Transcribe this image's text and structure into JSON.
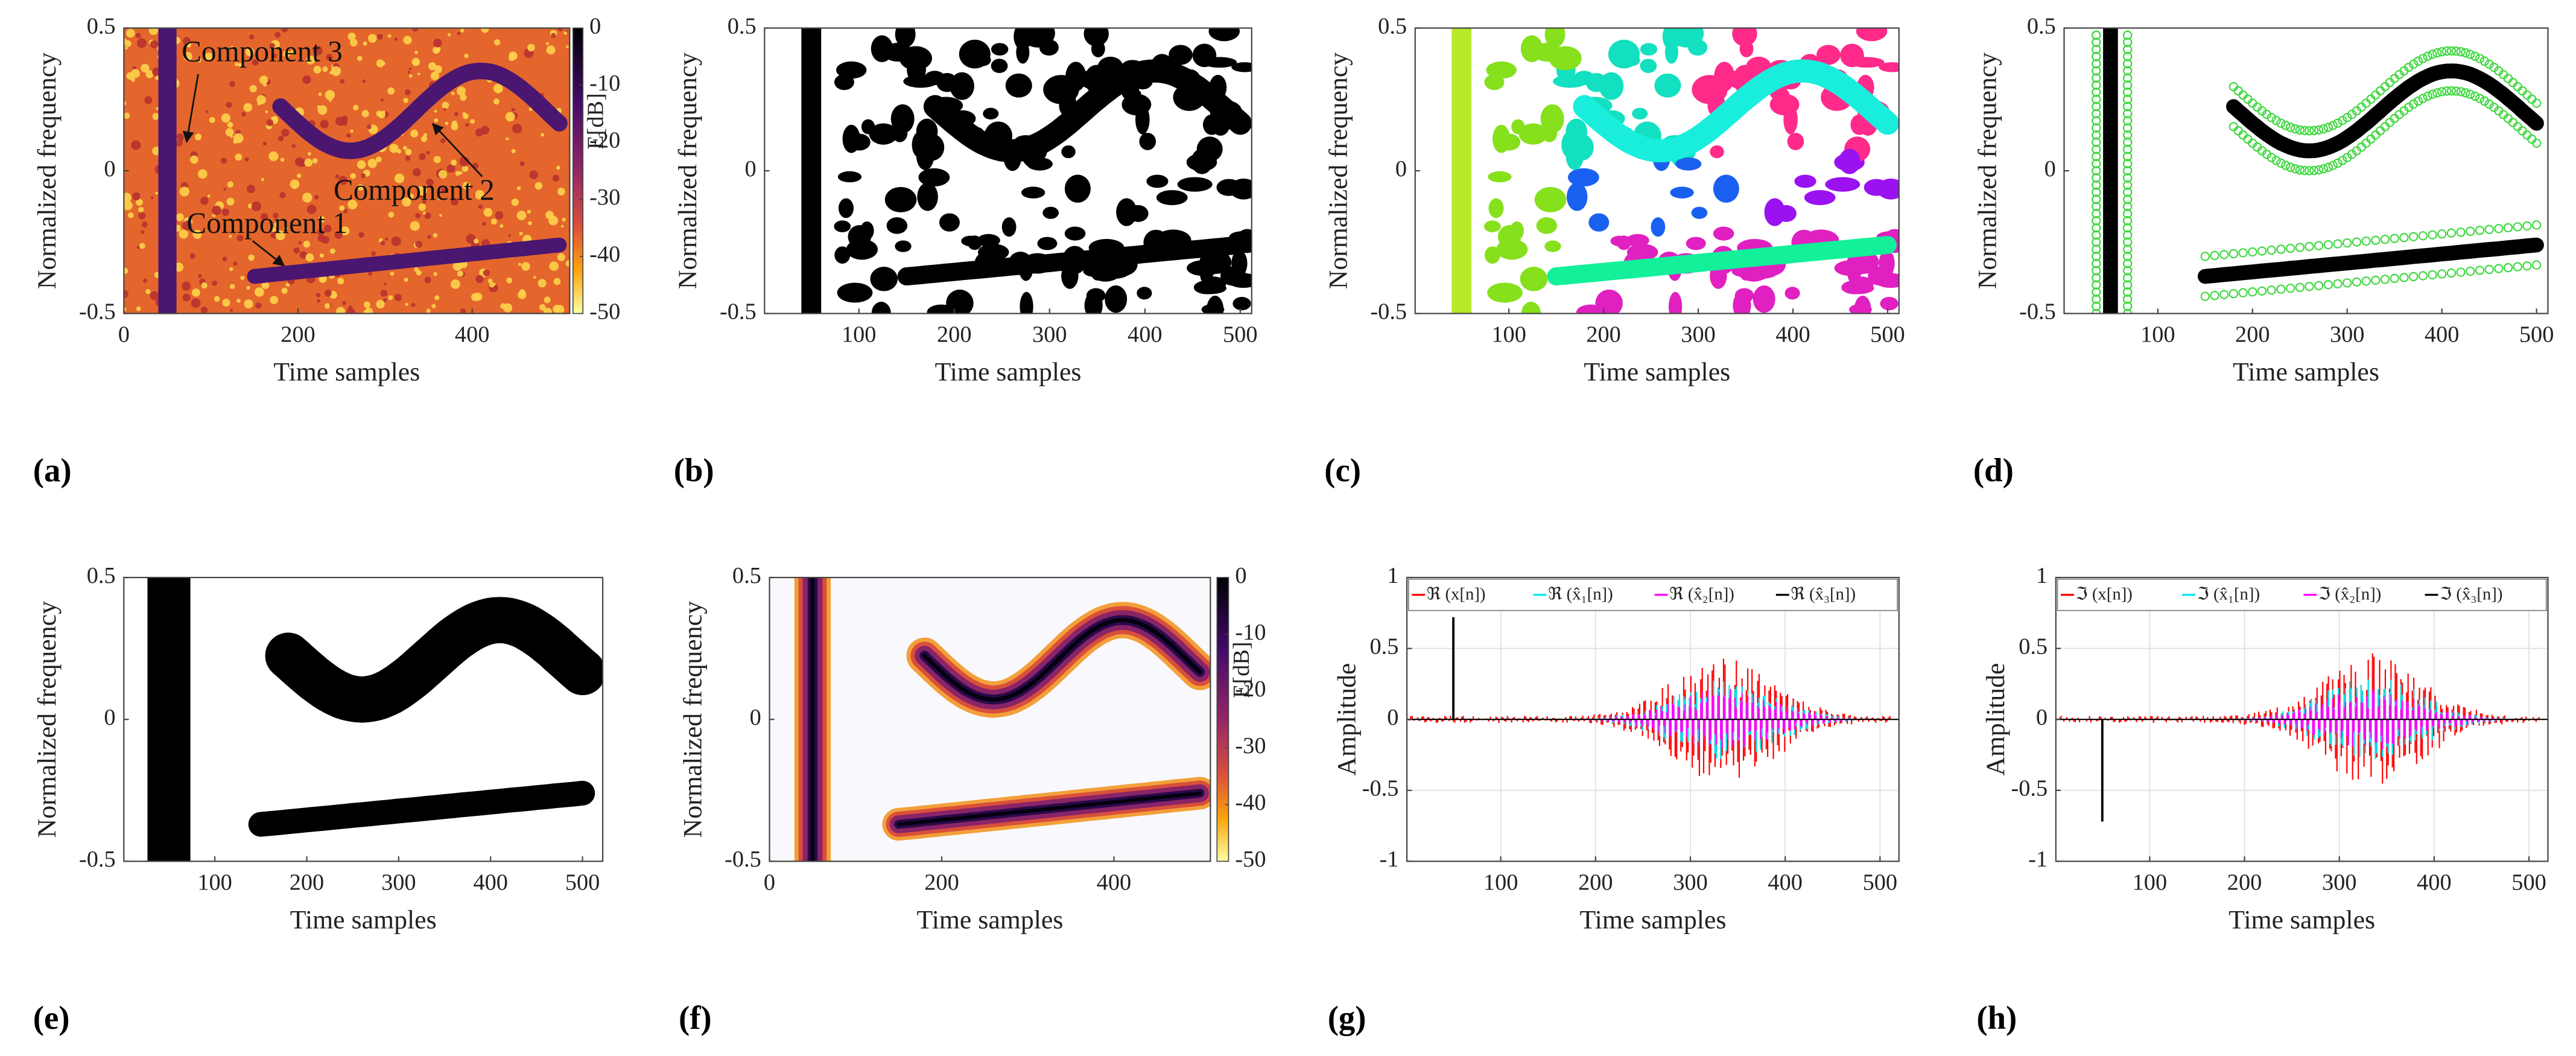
{
  "chart_data": [
    {
      "type": "heatmap",
      "panel": "(a)",
      "xlabel": "Time samples",
      "ylabel": "Normalized frequency",
      "xlim": [
        0,
        512
      ],
      "ylim": [
        -0.5,
        0.5
      ],
      "xticks": [
        0,
        200,
        400
      ],
      "yticks": [
        -0.5,
        0,
        0.5
      ],
      "colorbar": {
        "label": "E[dB]",
        "lim": [
          -50,
          0
        ],
        "ticks": [
          0,
          -10,
          -20,
          -30,
          -40,
          -50
        ]
      },
      "annotations": [
        "Component 3",
        "Component 2",
        "Component 1"
      ]
    },
    {
      "type": "mask",
      "panel": "(b)",
      "xlabel": "Time samples",
      "ylabel": "Normalized frequency",
      "xlim": [
        1,
        512
      ],
      "ylim": [
        -0.5,
        0.5
      ],
      "xticks": [
        100,
        200,
        300,
        400,
        500
      ],
      "yticks": [
        -0.5,
        0,
        0.5
      ]
    },
    {
      "type": "segmentation",
      "panel": "(c)",
      "xlabel": "Time samples",
      "ylabel": "Normalized frequency",
      "xlim": [
        1,
        512
      ],
      "ylim": [
        -0.5,
        0.5
      ],
      "xticks": [
        100,
        200,
        300,
        400,
        500
      ],
      "yticks": [
        -0.5,
        0,
        0.5
      ]
    },
    {
      "type": "ridges",
      "panel": "(d)",
      "xlabel": "Time samples",
      "ylabel": "Normalized frequency",
      "xlim": [
        1,
        512
      ],
      "ylim": [
        -0.5,
        0.5
      ],
      "xticks": [
        100,
        200,
        300,
        400,
        500
      ],
      "yticks": [
        -0.5,
        0,
        0.5
      ]
    },
    {
      "type": "filled-mask",
      "panel": "(e)",
      "xlabel": "Time samples",
      "ylabel": "Normalized frequency",
      "xlim": [
        1,
        522
      ],
      "ylim": [
        -0.5,
        0.5
      ],
      "xticks": [
        100,
        200,
        300,
        400,
        500
      ],
      "yticks": [
        -0.5,
        0,
        0.5
      ]
    },
    {
      "type": "masked-heatmap",
      "panel": "(f)",
      "xlabel": "Time samples",
      "ylabel": "Normalized frequency",
      "xlim": [
        0,
        512
      ],
      "ylim": [
        -0.5,
        0.5
      ],
      "xticks": [
        0,
        200,
        400
      ],
      "yticks": [
        -0.5,
        0,
        0.5
      ],
      "colorbar": {
        "label": "E[dB]",
        "lim": [
          -50,
          0
        ],
        "ticks": [
          0,
          -10,
          -20,
          -30,
          -40,
          -50
        ]
      }
    },
    {
      "type": "line",
      "panel": "(g)",
      "xlabel": "Time samples",
      "ylabel": "Amplitude",
      "xlim": [
        1,
        520
      ],
      "ylim": [
        -1,
        1
      ],
      "xticks": [
        100,
        200,
        300,
        400,
        500
      ],
      "yticks": [
        -1,
        -0.5,
        0,
        0.5,
        1
      ],
      "grid": true,
      "series": [
        {
          "name": "ℜ (x[n])",
          "color": "#ff0000"
        },
        {
          "name": "ℜ (x̂₁[n])",
          "color": "#00e5ee"
        },
        {
          "name": "ℜ (x̂₂[n])",
          "color": "#ff00ff"
        },
        {
          "name": "ℜ (x̂₃[n])",
          "color": "#000000"
        }
      ]
    },
    {
      "type": "line",
      "panel": "(h)",
      "xlabel": "Time samples",
      "ylabel": "Amplitude",
      "xlim": [
        1,
        520
      ],
      "ylim": [
        -1,
        1
      ],
      "xticks": [
        100,
        200,
        300,
        400,
        500
      ],
      "yticks": [
        -1,
        -0.5,
        0,
        0.5,
        1
      ],
      "grid": true,
      "series": [
        {
          "name": "ℑ (x[n])",
          "color": "#ff0000"
        },
        {
          "name": "ℑ (x̂₁[n])",
          "color": "#00e5ee"
        },
        {
          "name": "ℑ (x̂₂[n])",
          "color": "#ff00ff"
        },
        {
          "name": "ℑ (x̂₃[n])",
          "color": "#000000"
        }
      ]
    }
  ]
}
